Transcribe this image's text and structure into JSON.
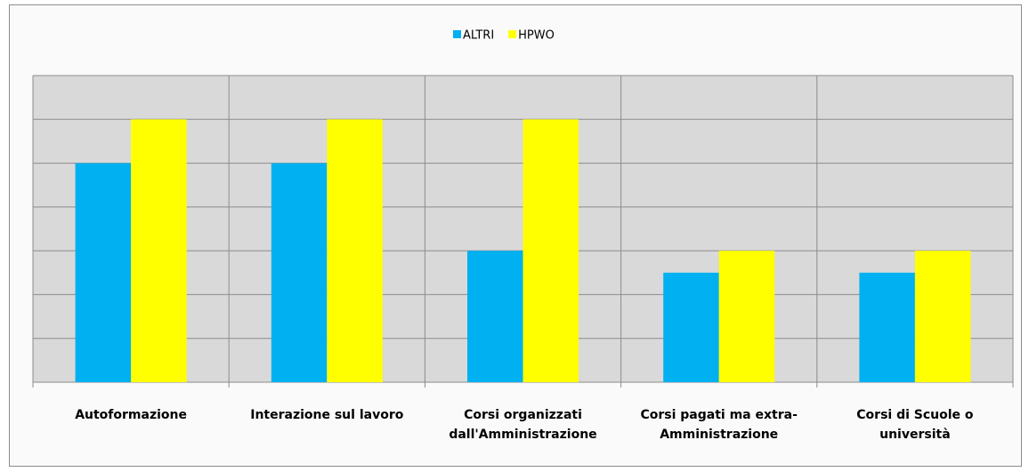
{
  "chart_data": {
    "type": "bar",
    "categories": [
      "Autoformazione",
      "Interazione sul lavoro",
      "Corsi organizzati dall'Amministrazione",
      "Corsi pagati ma extra-Amministrazione",
      "Corsi di Scuole o università"
    ],
    "series": [
      {
        "name": "ALTRI",
        "color": "#00b0f0",
        "values": [
          5,
          5,
          3,
          2.5,
          2.5
        ]
      },
      {
        "name": "HPWO",
        "color": "#ffff00",
        "values": [
          6,
          6,
          6,
          3,
          3
        ]
      }
    ],
    "ylim": [
      0,
      7
    ],
    "yticks": [
      0,
      1,
      2,
      3,
      4,
      5,
      6,
      7
    ],
    "grid": true,
    "legend": "top"
  }
}
